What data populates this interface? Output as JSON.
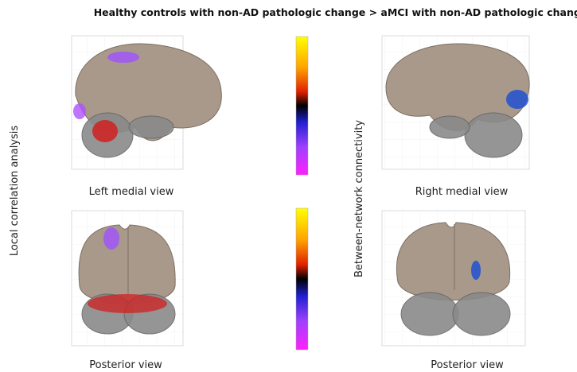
{
  "title": "Healthy controls with non-AD pathologic change > aMCI with non-AD pathologic change",
  "side_labels": {
    "left": "Local correlation analysis",
    "middle": "Between-network connectivity"
  },
  "panels": [
    {
      "caption": "Left medial view"
    },
    {
      "caption": "Right medial view"
    },
    {
      "caption": "Posterior view"
    },
    {
      "caption": "Posterior view"
    }
  ]
}
